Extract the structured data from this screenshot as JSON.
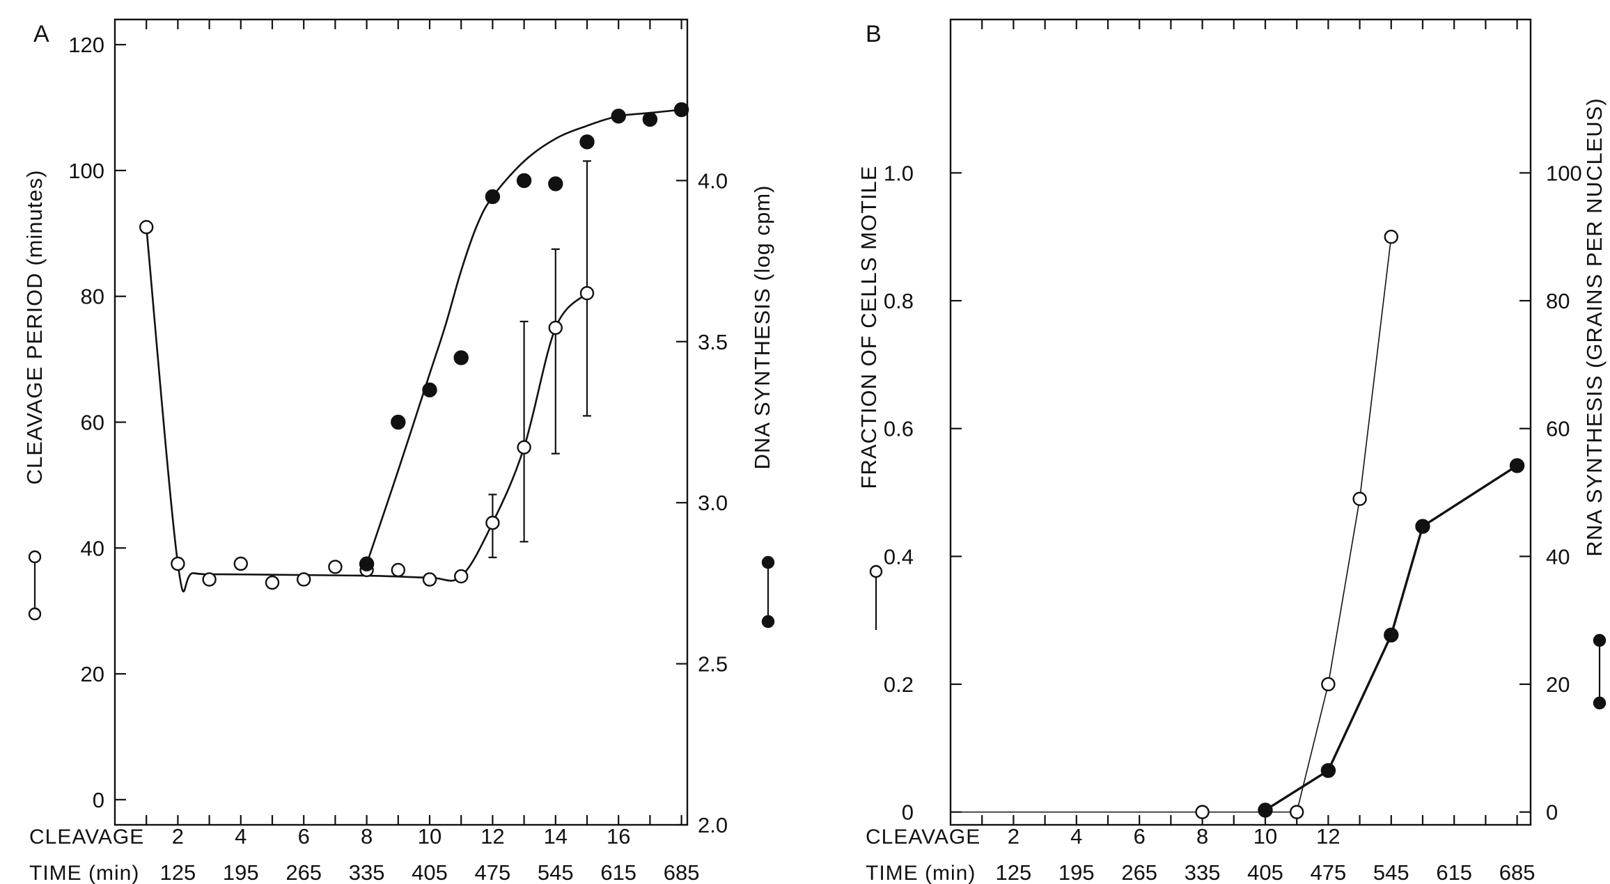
{
  "chart_data": [
    {
      "panel_label": "A",
      "type": "scatter",
      "x_label": "CLEAVAGE",
      "x_ticks": [
        2,
        4,
        6,
        8,
        10,
        12,
        14,
        16
      ],
      "time_label": "TIME (min)",
      "time_ticks": [
        "125",
        "195",
        "265",
        "335",
        "405",
        "475",
        "545",
        "615",
        "685"
      ],
      "xlim": [
        0,
        18
      ],
      "left_axis": {
        "label": "CLEAVAGE PERIOD (minutes)",
        "ylim": [
          -4,
          124
        ],
        "ticks": [
          0,
          20,
          40,
          60,
          80,
          100,
          120
        ]
      },
      "right_axis": {
        "label": "DNA SYNTHESIS (log cpm)",
        "ylim": [
          2.0,
          4.5
        ],
        "ticks": [
          2.0,
          2.5,
          3.0,
          3.5,
          4.0
        ],
        "tick_labels": [
          "2.0",
          "2.5",
          "3.0",
          "3.5",
          "4.0"
        ]
      },
      "series": [
        {
          "marker": "open",
          "axis": "left",
          "legend_symbol": "open-circle",
          "points": [
            [
              1,
              91
            ],
            [
              2,
              37.5
            ],
            [
              3,
              35
            ],
            [
              4,
              37.5
            ],
            [
              5,
              34.5
            ],
            [
              6,
              35
            ],
            [
              7,
              37
            ],
            [
              8,
              36.5
            ],
            [
              9,
              36.5
            ],
            [
              10,
              35
            ],
            [
              11,
              35.5
            ],
            [
              12,
              44
            ],
            [
              13,
              56
            ],
            [
              14,
              75
            ],
            [
              15,
              80.5
            ]
          ],
          "error_bars": [
            [
              12,
              38.5,
              48.5
            ],
            [
              13,
              41,
              76
            ],
            [
              14,
              55,
              87.5
            ],
            [
              15,
              61,
              101.5
            ]
          ],
          "fit": [
            [
              1,
              91
            ],
            [
              2,
              37.5
            ],
            [
              2.5,
              36
            ],
            [
              4,
              35.8
            ],
            [
              8,
              35.6
            ],
            [
              10,
              35.3
            ],
            [
              11,
              35.5
            ],
            [
              12,
              44
            ],
            [
              13,
              56
            ],
            [
              14,
              75
            ],
            [
              15,
              80.5
            ]
          ]
        },
        {
          "marker": "filled",
          "axis": "right",
          "legend_symbol": "filled-circle",
          "points": [
            [
              8,
              2.81
            ],
            [
              9,
              3.25
            ],
            [
              10,
              3.35
            ],
            [
              11,
              3.45
            ],
            [
              12,
              3.95
            ],
            [
              13,
              4.0
            ],
            [
              14,
              3.99
            ],
            [
              15,
              4.12
            ],
            [
              16,
              4.2
            ],
            [
              17,
              4.19
            ],
            [
              18,
              4.22
            ]
          ],
          "fit": [
            [
              8,
              2.81
            ],
            [
              9,
              3.1
            ],
            [
              10,
              3.4
            ],
            [
              10.5,
              3.55
            ],
            [
              11,
              3.72
            ],
            [
              11.5,
              3.86
            ],
            [
              12,
              3.95
            ],
            [
              13,
              4.06
            ],
            [
              14,
              4.13
            ],
            [
              15,
              4.17
            ],
            [
              16,
              4.2
            ],
            [
              17,
              4.21
            ],
            [
              18,
              4.22
            ]
          ]
        }
      ]
    },
    {
      "panel_label": "B",
      "type": "line",
      "x_label": "CLEAVAGE",
      "x_ticks": [
        2,
        4,
        6,
        8,
        10,
        12
      ],
      "time_label": "TIME (min)",
      "time_ticks": [
        "125",
        "195",
        "265",
        "335",
        "405",
        "475",
        "545",
        "615",
        "685"
      ],
      "xlim": [
        0,
        18
      ],
      "left_axis": {
        "label": "FRACTION OF CELLS MOTILE",
        "ylim": [
          -0.02,
          1.24
        ],
        "ticks": [
          0,
          0.2,
          0.4,
          0.6,
          0.8,
          1.0
        ],
        "tick_labels": [
          "0",
          "0.2",
          "0.4",
          "0.6",
          "0.8",
          "1.0"
        ]
      },
      "right_axis": {
        "label": "RNA SYNTHESIS (GRAINS PER NUCLEUS)",
        "ylim": [
          -2,
          124
        ],
        "ticks": [
          0,
          20,
          40,
          60,
          80,
          100
        ],
        "tick_labels": [
          "0",
          "20",
          "40",
          "60",
          "80",
          "100"
        ]
      },
      "series": [
        {
          "marker": "open",
          "axis": "left",
          "legend_symbol": "open-circle",
          "stroke_width": 1.6,
          "points": [
            [
              0,
              0
            ],
            [
              8,
              0
            ],
            [
              10,
              0
            ],
            [
              11,
              0
            ],
            [
              12,
              0.2
            ],
            [
              13,
              0.49
            ],
            [
              14,
              0.9
            ]
          ],
          "marked": [
            false,
            true,
            false,
            true,
            true,
            true,
            true
          ]
        },
        {
          "marker": "filled",
          "axis": "right",
          "legend_symbol": "filled-circle",
          "stroke_width": 3.4,
          "points": [
            [
              10,
              0.3
            ],
            [
              12,
              6.5
            ],
            [
              14,
              27.7
            ],
            [
              15,
              44.7
            ],
            [
              18,
              54.2
            ]
          ],
          "marked": [
            true,
            true,
            true,
            true,
            true
          ]
        }
      ]
    }
  ]
}
